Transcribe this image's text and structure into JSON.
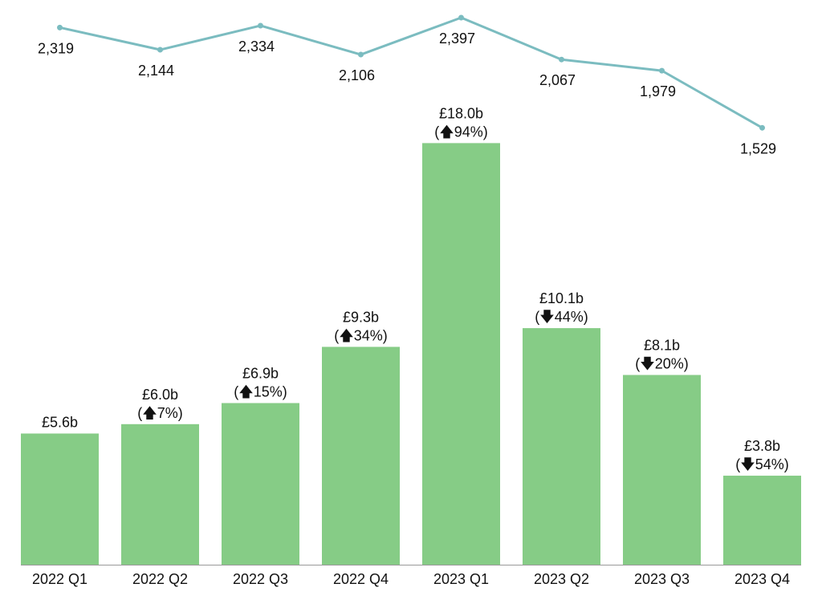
{
  "chart_data": {
    "type": "bar",
    "title": "",
    "xlabel": "",
    "ylabel": "",
    "grid": false,
    "categories": [
      "2022 Q1",
      "2022 Q2",
      "2022 Q3",
      "2022 Q4",
      "2023 Q1",
      "2023 Q2",
      "2023 Q3",
      "2023 Q4"
    ],
    "series": [
      {
        "type": "bar",
        "values": [
          5.6,
          6.0,
          6.9,
          9.3,
          18.0,
          10.1,
          8.1,
          3.8
        ],
        "value_labels": [
          "£5.6b",
          "£6.0b",
          "£6.9b",
          "£9.3b",
          "£18.0b",
          "£10.1b",
          "£8.1b",
          "£3.8b"
        ],
        "change_labels": [
          "",
          "(🡅7%)",
          "(🡅15%)",
          "(🡅34%)",
          "(🡅94%)",
          "(🡇44%)",
          "(🡇20%)",
          "(🡇54%)"
        ],
        "color": "#86cc86"
      },
      {
        "type": "line",
        "values": [
          2319,
          2144,
          2334,
          2106,
          2397,
          2067,
          1979,
          1529
        ],
        "value_labels": [
          "2,319",
          "2,144",
          "2,334",
          "2,106",
          "2,397",
          "2,067",
          "1,979",
          "1,529"
        ],
        "color": "#7bbcc0"
      }
    ],
    "colors": {
      "bar": "#86cc86",
      "line": "#7bbcc0",
      "text": "#111111",
      "baseline": "#9a9a9a"
    }
  }
}
